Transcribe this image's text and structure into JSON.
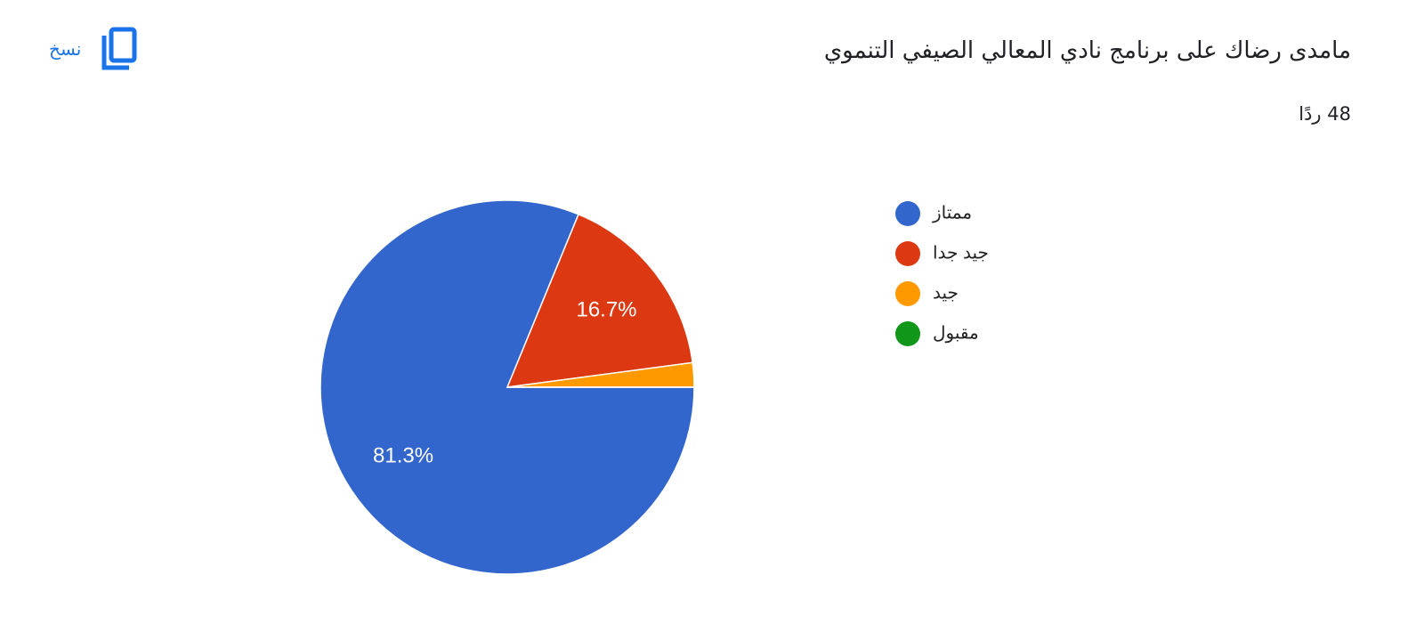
{
  "title": "مامدى رضاك على برنامج نادي المعالي الصيفي التنموي",
  "subtitle": "48 ردًا",
  "copy_button": "نسخ",
  "chart_data": {
    "type": "pie",
    "categories": [
      "ممتاز",
      "جيد جدا",
      "جيد",
      "مقبول"
    ],
    "values": [
      81.3,
      16.7,
      2.1,
      0
    ],
    "value_labels": [
      "81.3%",
      "16.7%",
      null,
      null
    ],
    "colors": [
      "#3366cc",
      "#dc3912",
      "#ff9900",
      "#109618"
    ],
    "legend": "right"
  }
}
